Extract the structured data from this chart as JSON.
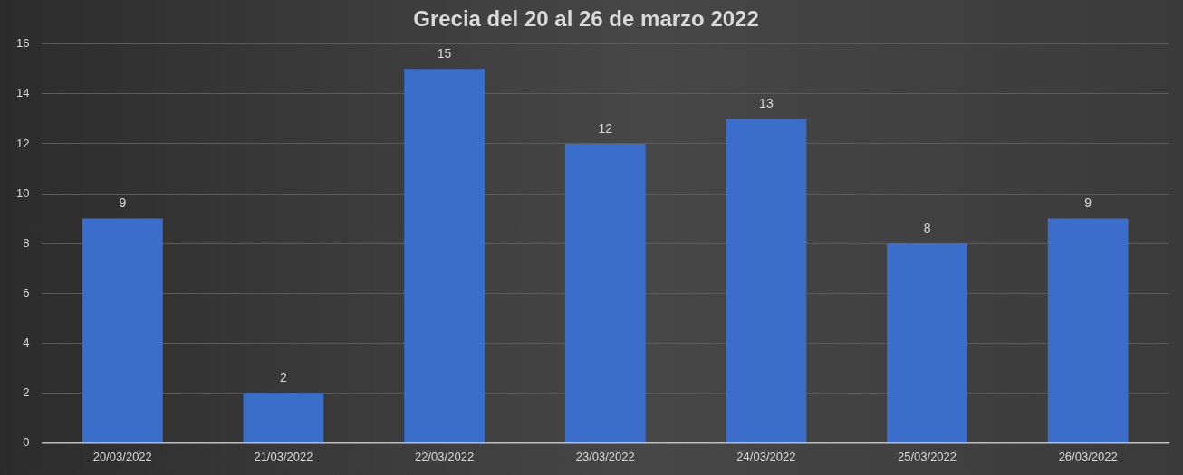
{
  "chart_data": {
    "type": "bar",
    "title": "Grecia del 20 al 26 de marzo 2022",
    "categories": [
      "20/03/2022",
      "21/03/2022",
      "22/03/2022",
      "23/03/2022",
      "24/03/2022",
      "25/03/2022",
      "26/03/2022"
    ],
    "values": [
      9,
      2,
      15,
      12,
      13,
      8,
      9
    ],
    "color": "#3b6ecb",
    "ylim": [
      0,
      16
    ],
    "yticks": [
      0,
      2,
      4,
      6,
      8,
      10,
      12,
      14,
      16
    ],
    "grid": "y",
    "data_labels": true,
    "legend": false
  }
}
